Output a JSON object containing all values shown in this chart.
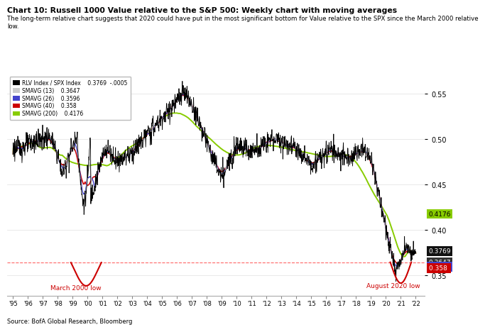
{
  "title": "Chart 10: Russell 1000 Value relative to the S&P 500: Weekly chart with moving averages",
  "subtitle": "The long-term relative chart suggests that 2020 could have put in the most significant bottom for Value relative to the SPX since the March 2000 relative low.",
  "source": "Source: BofA Global Research, Bloomberg",
  "ylabel_values": [
    0.35,
    0.4,
    0.45,
    0.5,
    0.55
  ],
  "x_start_year": 1995,
  "x_end_year": 2022,
  "dashed_line_y": 0.3647,
  "label_values": {
    "RLV": 0.3769,
    "change": -0.0005,
    "smavg13": 0.3647,
    "smavg26": 0.3596,
    "smavg40": 0.358,
    "smavg200": 0.4176
  },
  "annotation_march2000": "March 2000 low",
  "annotation_august2020": "August 2020 low",
  "colors": {
    "main_line": "#000000",
    "smavg13": "#cccccc",
    "smavg26": "#4444cc",
    "smavg40": "#cc0000",
    "smavg200": "#88cc00",
    "dashed_line": "#ff6666",
    "background": "#ffffff",
    "label_bg_200": "#88cc00",
    "label_bg_rlv": "#111111",
    "label_bg_13": "#333333",
    "label_bg_26": "#4444cc",
    "label_bg_40": "#cc0000",
    "annotation": "#cc0000"
  },
  "figsize": [
    7.0,
    4.6
  ],
  "dpi": 100
}
